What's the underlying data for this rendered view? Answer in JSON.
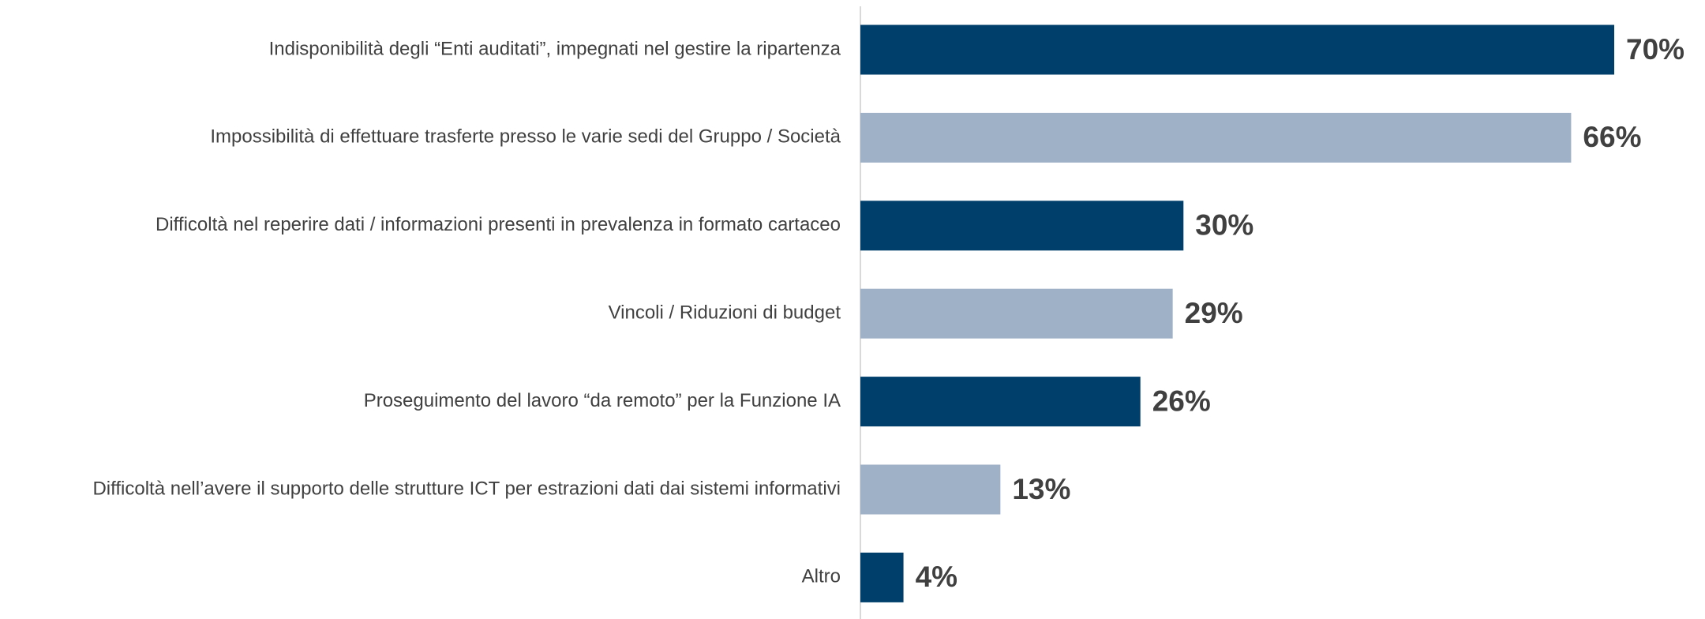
{
  "chart_data": {
    "type": "bar",
    "orientation": "horizontal",
    "categories": [
      "Indisponibilità degli “Enti auditati”, impegnati nel gestire la ripartenza",
      "Impossibilità di effettuare trasferte presso le varie sedi del Gruppo / Società",
      "Difficoltà nel reperire dati / informazioni presenti in prevalenza in formato cartaceo",
      "Vincoli / Riduzioni di budget",
      "Proseguimento del lavoro “da remoto” per la Funzione IA",
      "Difficoltà nell’avere il supporto delle strutture ICT per estrazioni dati dai sistemi informativi",
      "Altro"
    ],
    "values": [
      70,
      66,
      30,
      29,
      26,
      13,
      4
    ],
    "value_labels": [
      "70%",
      "66%",
      "30%",
      "29%",
      "26%",
      "13%",
      "4%"
    ],
    "colors": [
      "#003f6b",
      "#9fb1c6",
      "#003f6b",
      "#9fb1c6",
      "#003f6b",
      "#9fb1c6",
      "#003f6b"
    ]
  }
}
